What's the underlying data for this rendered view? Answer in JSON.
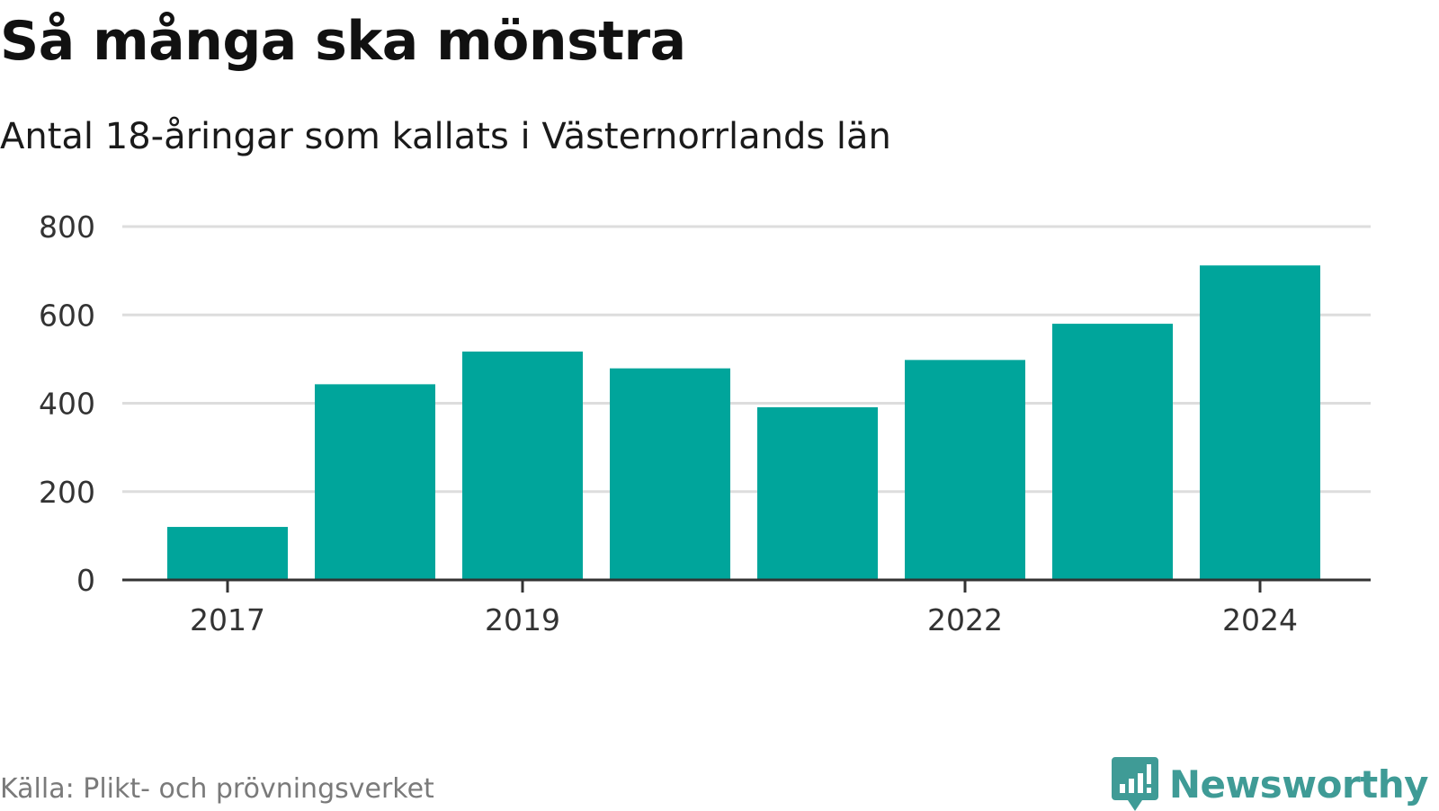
{
  "header": {
    "title": "Så många ska mönstra",
    "subtitle": "Antal 18-åringar som kallats i Västernorrlands län"
  },
  "footer": {
    "source": "Källa: Plikt- och prövningsverket",
    "brand": "Newsworthy",
    "brand_icon": "bar-chart-speech-bubble-icon"
  },
  "colors": {
    "bar": "#00a59b",
    "grid": "#dddddd",
    "axis": "#333333",
    "brand": "#3f9b96"
  },
  "chart_data": {
    "type": "bar",
    "title": "Så många ska mönstra",
    "subtitle": "Antal 18-åringar som kallats i Västernorrlands län",
    "xlabel": "",
    "ylabel": "",
    "categories": [
      "2017",
      "2018",
      "2019",
      "2020",
      "2021",
      "2022",
      "2023",
      "2024"
    ],
    "values": [
      120,
      443,
      517,
      479,
      391,
      498,
      580,
      712
    ],
    "x_tick_labels": [
      "2017",
      "2019",
      "2022",
      "2024"
    ],
    "y_ticks": [
      0,
      200,
      400,
      600,
      800
    ],
    "ylim": [
      0,
      800
    ],
    "grid": true,
    "legend": "none"
  }
}
